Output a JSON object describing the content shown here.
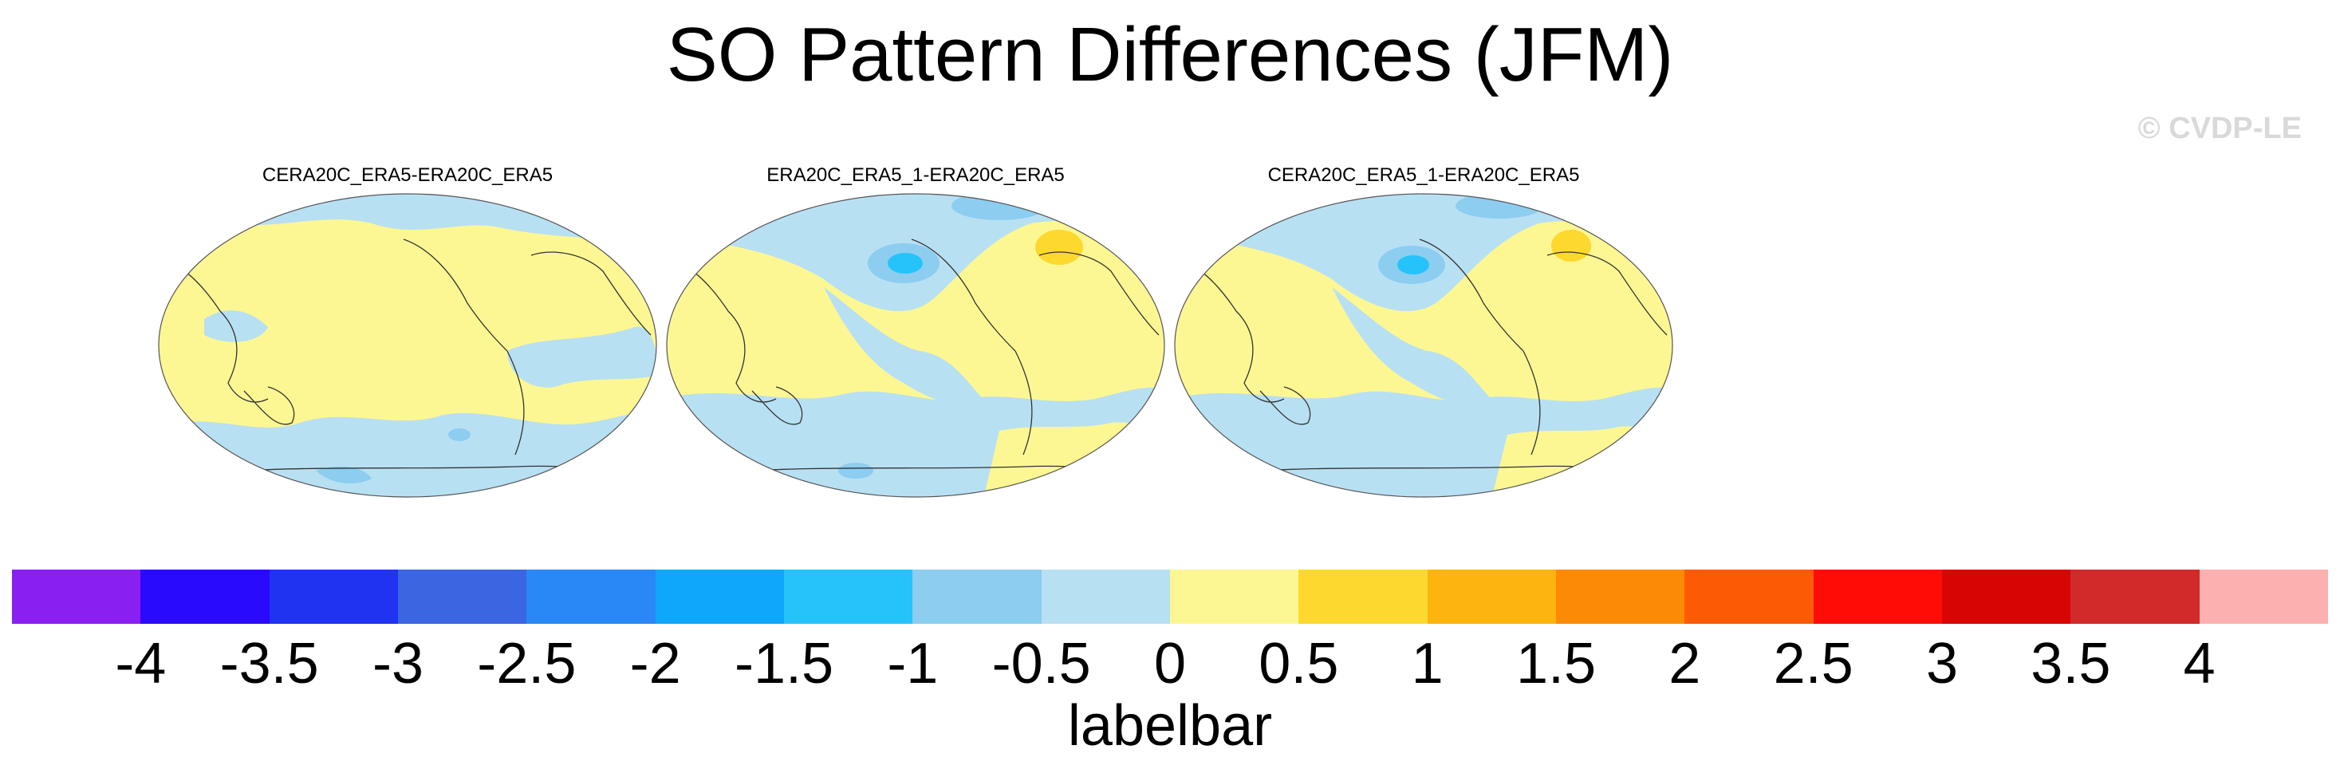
{
  "title": "SO Pattern Differences (JFM)",
  "watermark": "© CVDP-LE",
  "panels": [
    {
      "title": "CERA20C_ERA5-ERA20C_ERA5"
    },
    {
      "title": "ERA20C_ERA5_1-ERA20C_ERA5"
    },
    {
      "title": "CERA20C_ERA5_1-ERA20C_ERA5"
    }
  ],
  "labelbar": {
    "label": "labelbar",
    "colors": [
      "#8a1ff2",
      "#2a0afc",
      "#1f33f0",
      "#3a66e2",
      "#2a88f6",
      "#0ea7fa",
      "#26c3fa",
      "#8ccdf0",
      "#b8e0f3",
      "#fdf793",
      "#fdd82e",
      "#fdb40e",
      "#fd8a05",
      "#fd5a05",
      "#fd0d05",
      "#d80505",
      "#d22a2a",
      "#fdb0b0"
    ],
    "ticks": [
      "-4",
      "-3.5",
      "-3",
      "-2.5",
      "-2",
      "-1.5",
      "-1",
      "-0.5",
      "0",
      "0.5",
      "1",
      "1.5",
      "2",
      "2.5",
      "3",
      "3.5",
      "4"
    ]
  }
}
